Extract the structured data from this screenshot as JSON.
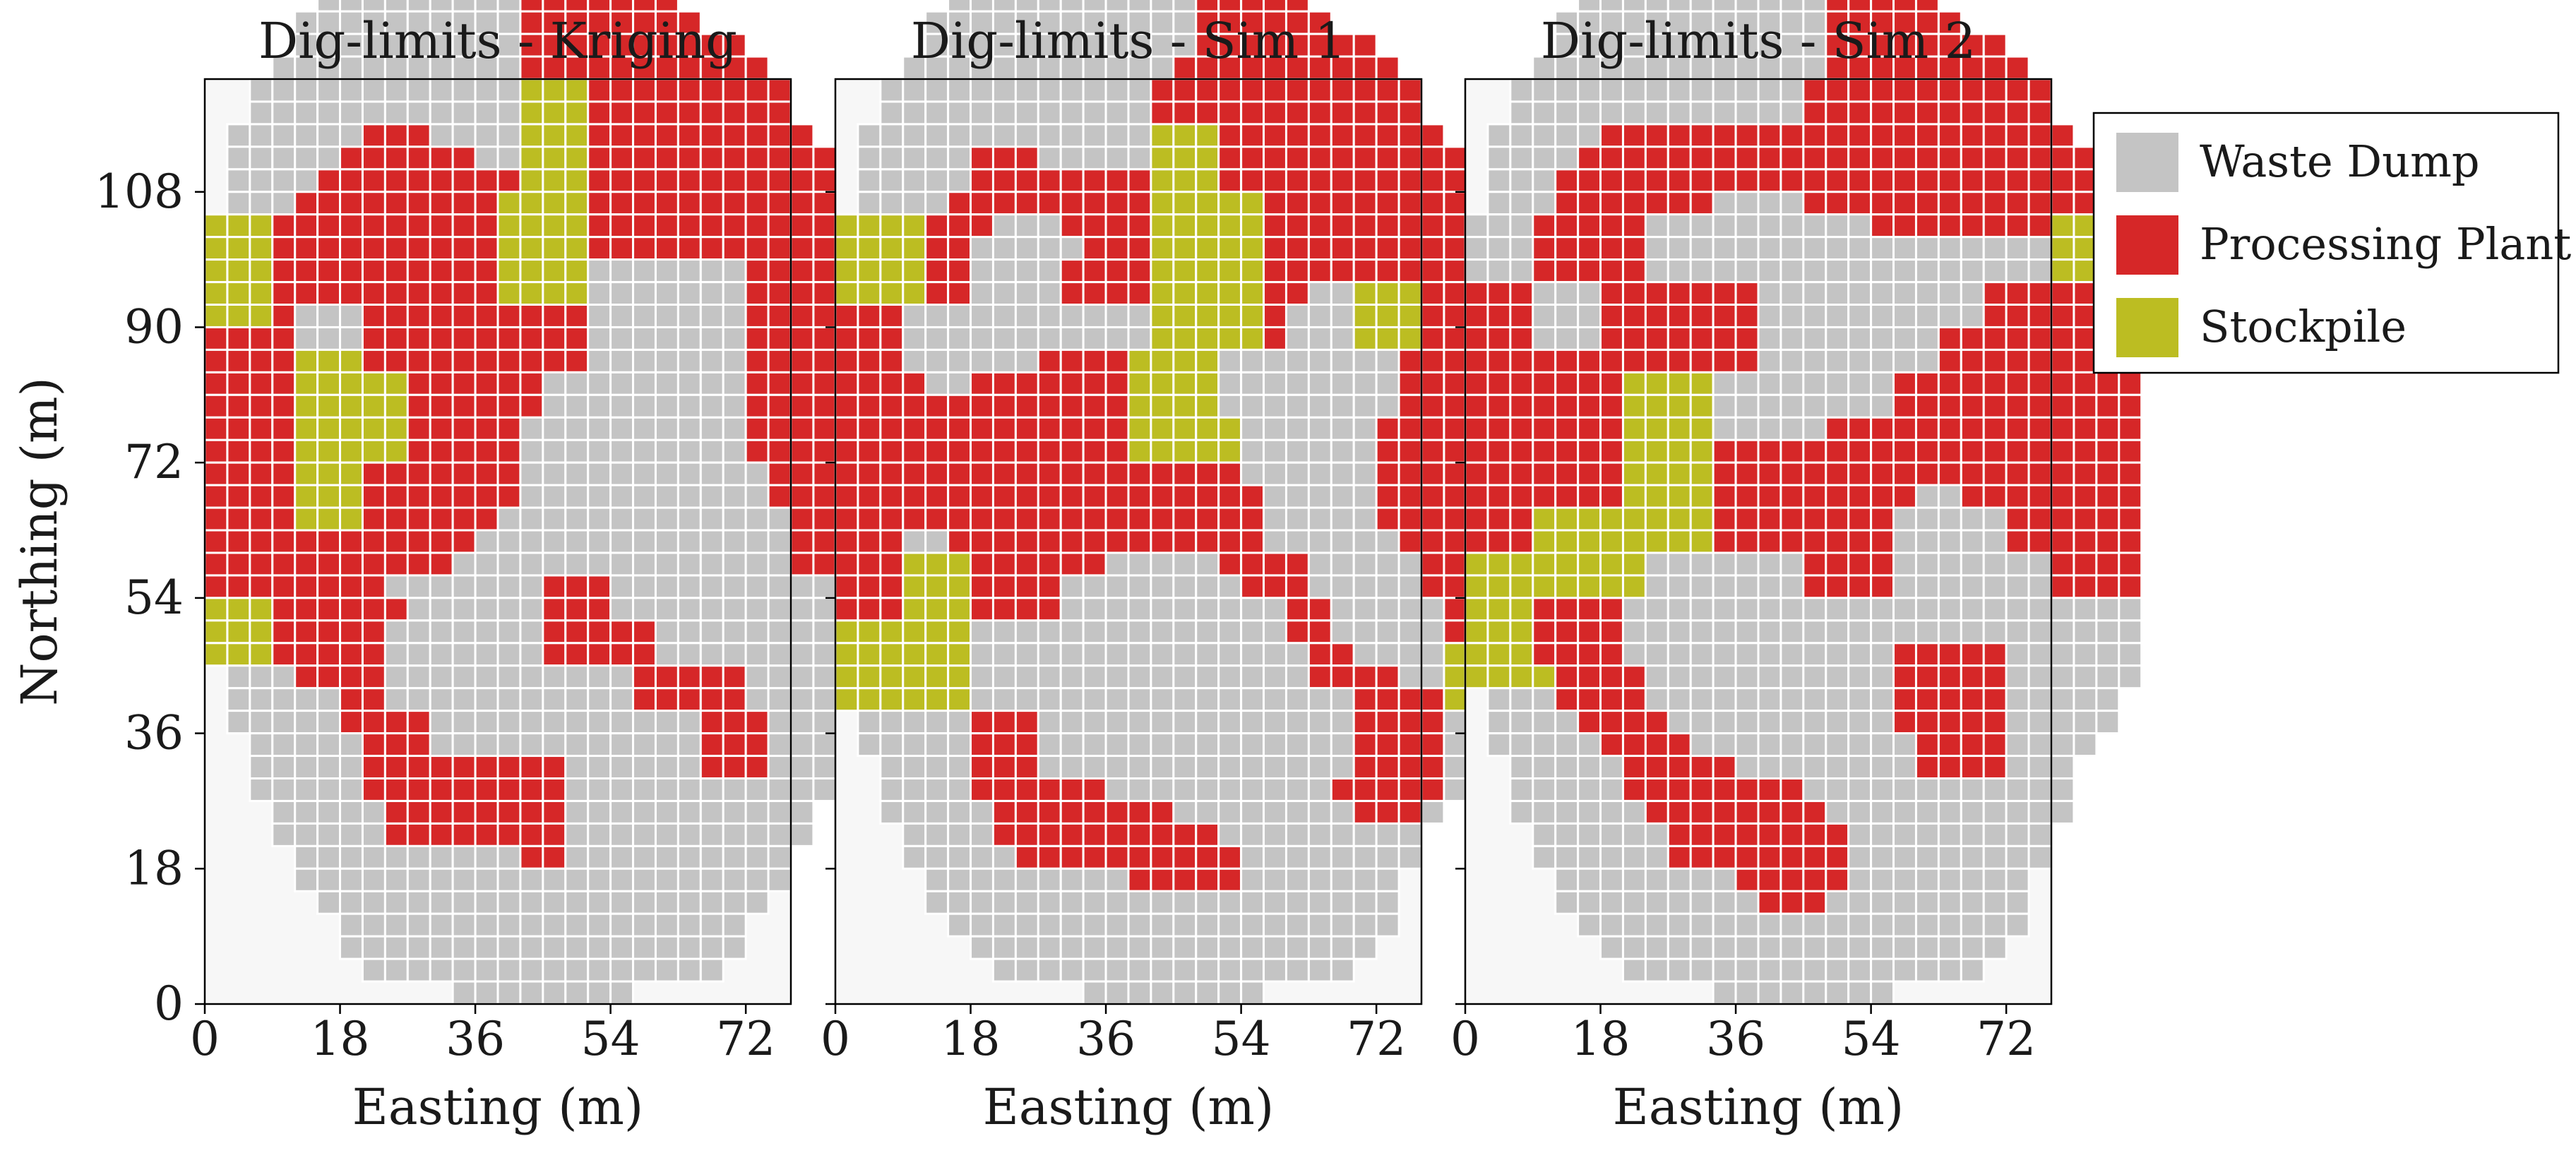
{
  "chart_data": {
    "type": "heatmap",
    "title": "",
    "cell_size": 3,
    "x_range": [
      0,
      78
    ],
    "y_range": [
      0,
      123
    ],
    "classes": [
      {
        "code": "W",
        "name": "Waste Dump",
        "color": "#c4c4c4"
      },
      {
        "code": "P",
        "name": "Processing Plant",
        "color": "#d62728"
      },
      {
        "code": "S",
        "name": "Stockpile",
        "color": "#bcbd22"
      }
    ],
    "background_color": "#f7f7f7",
    "legend": {
      "placement": "right",
      "entries": [
        "Waste Dump",
        "Processing Plant",
        "Stockpile"
      ]
    },
    "panels": [
      {
        "title": "Dig-limits - Kriging",
        "xlabel": "Easting (m)",
        "ylabel": "Northing (m)",
        "xticks": [
          0,
          18,
          36,
          54,
          72
        ],
        "yticks": [
          0,
          18,
          36,
          54,
          72,
          90,
          108
        ],
        "grid": [
          "...........WWWPPP.............",
          "........WWWWWWPPPPP...........",
          "......WWWWWWWWPPPPPP..........",
          ".....WWWWWWWWWPPPPPPP.........",
          "....WWWWWWWWWWPPPPPPPP........",
          "....WWWWWWWWWWPPPPPPPPPP......",
          "...WWWWWWWWWWWPPPPPPPPPPP.....",
          "..WWWWWWWWWWWWSSSPPPPPPPPP....",
          "..WWWWWWWWWWWWSSSPPPPPPPPP....",
          ".WWWWWWPPPWWWWSSSPPPPPPPPPP...",
          ".WWWWWPPPPPPWWSSSPPPPPPPPPPP..",
          ".WWWWPPPPPPPPPSSSPPPPPPPPPPP..",
          ".WWWPPPPPPPPPSSSSPPPPPPPPPPPP.",
          "SSSPPPPPPPPPPSSSSPPPPPPPPPPPPP",
          "SSSPPPPPPPPPPSSSSPPPPPPPPPPPPP",
          "SSSPPPPPPPPPPSSSSWWWWWWWPPPPPP",
          "SSSPPPPPPPPPPSSSSWWWWWWWPPPPPP",
          "SSSPWWWPPPPPPPPPPWWWWWWWPPPPPP",
          "PPPPWWWPPPPPPPPPPWWWWWWWPPPPPP",
          "PPPPSSSPPPPPPPPPPWWWWWWWPPPPPP",
          "PPPPSSSSSPPPPPPWWWWWWWWWPPPPPP",
          "PPPPSSSSSPPPPPPWWWWWWWWWPPPPPP",
          "PPPPSSSSSPPPPPWWWWWWWWWWPPPPPP",
          "PPPPSSSSSPPPPPWWWWWWWWWWPPPPPP",
          "PPPPSSSPPPPPPPWWWWWWWWWWWPPPPP",
          "PPPPSSSPPPPPPPWWWWWWWWWWWPPPPP",
          "PPPPSSSPPPPPPWWWWWWWWWWWWWPPPP",
          "PPPPPPPPPPPPWWWWWWWWWWWWWWPPPP",
          "PPPPPPPPPPPWWWWWWWWWWWWWWWPPPP",
          "PPPPPPPPWWWWWWWPPPWWWWWWWWWWWW",
          "SSSPPPPPPWWWWWWPPPWWWWWWWWWWWW",
          "SSSPPPPPWWWWWWWPPPPPWWWWWWWWWW",
          "SSSPPPPPWWWWWWWPPPPPWWWWWWWWWW",
          ".WWWPPPPWWWWWWWWWWWPPPPPWWWWW.",
          ".WWWWWPPWWWWWWWWWWWPPPPPWWWWW.",
          ".WWWWWPPPPWWWWWWWWWWWWPPPWWWW.",
          "..WWWWWPPPWWWWWWWWWWWWPPPWWW..",
          "..WWWWWPPPPPPPPPWWWWWWPPPWWW..",
          "..WWWWWPPPPPPPPPWWWWWWWWWWWW..",
          "...WWWWWPPPPPPPPWWWWWWWWWWW...",
          "...WWWWWPPPPPPPPWWWWWWWWWWW...",
          "....WWWWWWWWWWPPWWWWWWWWWW....",
          "....WWWWWWWWWWWWWWWWWWWWWW....",
          ".....WWWWWWWWWWWWWWWWWWWW.....",
          "......WWWWWWWWWWWWWWWWWW......",
          "......WWWWWWWWWWWWWWWWWW......",
          ".......WWWWWWWWWWWWWWWW.......",
          "...........WWWWWWWW..........."
        ]
      },
      {
        "title": "Dig-limits - Sim 1",
        "xlabel": "Easting (m)",
        "ylabel": "",
        "xticks": [
          0,
          18,
          36,
          54,
          72
        ],
        "yticks": [
          0,
          18,
          36,
          54,
          72,
          90,
          108
        ],
        "grid": [
          "...........WWWPPP.............",
          "........WWWWWWPPPPP...........",
          "......WWWWWWWWPPPPPP..........",
          ".....WWWWWWWWWWWPPPPP.........",
          "....WWWWWWWWWWWWPPPPPP........",
          "....WWWWWWWWWWWWPPPPPPPP......",
          "...WWWWWWWWWWWWPPPPPPPPPP.....",
          "..WWWWWWWWWWWWPPPPPPPPPPPP....",
          "..WWWWWWWWWWWWPPPPPPPPPPPP....",
          ".WWWWWWWWWWWWWSSSPPPPPPPPPP...",
          ".WWWWWPPPWWWWWSSSPPPPPPPPPPP..",
          ".WWWWWPPPPPPPPSSSPPPPPPPPPPP..",
          ".WWWWPPPPPPPPPSSSSSPPPPPPPPPP.",
          "SSSSPPPWWWPPPPSSSSSPPPPPPPPPPP",
          "SSSSPPWWWWWPPPSSSSSPPPPPPPPPPP",
          "SSSSPPWWWWPPPPSSSSSPPPPPPPPPPP",
          "SSSSPPWWWWPPPPSSSSSPPWWSSSPPPP",
          "PPPWWWWWWWWWWWSSSSSPWWWSSSPPPP",
          "PPPWWWWWWWWWWWSSSSSPWWWSSSPPPP",
          "PPPWWWWWWPPPPSSSSWWWWWWWWPPPPP",
          "PPPPWWPPPPPPPSSSSWWWWWWWWPPPPP",
          "PPPPPPPPPPPPPSSSSWWWWWWWWPPPPP",
          "PPPPPPPPPPPPPSSSSSWWWWWWPPPPPP",
          "PPPPPPPPPPPPPSSSSSWWWWWWPPPPPP",
          "PPPPPPPPPPPPPPPPPPWWWWWWPPPPPP",
          "PPPPPPPPPPPPPPPPPPPWWWWWPPPPPP",
          "PPPPPPPPPPPPPPPPPPPWWWWWPPPPPP",
          "PPPWWPPPPPPPPPPPPPPWWWWWWPPPPP",
          "PPPSSSPPPPPPWWWWWPPPPWWWWWPPPP",
          "PPPSSSPPPPWWWWWWWWPPPWWWWWPPPP",
          "PPPSSSPPPPWWWWWWWWWWPPWWWWWPPP",
          "SSSSSSWWWWWWWWWWWWWWPPWWWWWPPP",
          "SSSSSSWWWWWWWWWWWWWWWPPWWWWSSS",
          "SSSSSSWWWWWWWWWWWWWWWPPPPWWSSSS",
          "SSSSSSWWWWWWWWWWWWWWWWWPPPPSSSS",
          ".WWWWWPPPWWWWWWWWWWWWWWPPPPWWW.",
          ".WWWWWPPPWWWWWWWWWWWWWWPPPPWWW.",
          "..WWWWPPPWWWWWWWWWWWWWWPPPPWW..",
          "..WWWWPPPPPPWWWWWWWWWWPPPPPW...",
          "..WWWWWPPPPPPPPWWWWWWWWPPPW....",
          "...WWWWPPPPPPPPPPWWWWWWWWW.....",
          "...WWWWWPPPPPPPPPPWWWWWWWW.....",
          "....WWWWWWWWWPPPPPWWWWWWW......",
          "....WWWWWWWWWWWWWWWWWWWWW......",
          ".....WWWWWWWWWWWWWWWWWWWW......",
          "......WWWWWWWWWWWWWWWWWW......",
          ".......WWWWWWWWWWWWWWWW.......",
          "...........WWWWWWWW..........."
        ]
      },
      {
        "title": "Dig-limits - Sim 2",
        "xlabel": "Easting (m)",
        "ylabel": "",
        "xticks": [
          0,
          18,
          36,
          54,
          72
        ],
        "yticks": [
          0,
          18,
          36,
          54,
          72,
          90,
          108
        ],
        "grid": [
          "...........WWWPPP.............",
          "........WWWWWWPPPPP...........",
          "......WWWWWWWWPPPPPP..........",
          ".....WWWWWWWWWWWPPPPP.........",
          "....WWWWWWWWWWWWPPPPPP........",
          "....WWWWWWWWWWWWPPPPPPPP......",
          "...WWWWWWWWWWWWWPPPPPPPPP.....",
          "..WWWWWWWWWWWWWPPPPPPPPPPP....",
          "..WWWWWWWWWWWWWPPPPPPPPPPP....",
          ".WWWWWPPPPPPPPPPPPPPPPPPPPP...",
          ".WWWWPPPPPPPPPPPPPPPPPPPPPPP..",
          ".WWWPPPPPPPPPPPPPPPPPPPPPPPP..",
          ".WWWPPPPPPPWWWWPPPPPPPPPPPPPP.",
          "WWWPPPPPWWWWWWWWWWPPPPPPPPSSSS",
          "WWWPPPPPWWWWWWWWWWWWWWWWWWSSSS",
          "WWWPPPPPWWWWWWWWWWWWWWWWWWSSSS",
          "PPPWWWPPPPPPPWWWWWWWWWWPPPPPPP",
          "PPPWWWPPPPPPPWWWWWWWWWWPPPPPPP",
          "PPPWWWPPPPPPPWWWWWWWWPPPPPPPPP",
          "PPPPPPPPPPPPPWWWWWWWWPPPPPPPPP",
          "PPPPPPPSSSSWWWWWWWWPPPPPPPPPPP",
          "PPPPPPPSSSSWWWWWWWWPPPPPPPPPPP",
          "PPPPPPPSSSSWWWWWPPPPPPPPPPPPPP",
          "PPPPPPPSSSSPPPPPPPPPPPPPPPPPPP",
          "PPPPPPPSSSSPPPPPPPPPPPPPPPPPPP",
          "PPPPPPPSSSSPPPPPPPPPWWPPPPPPPP",
          "PPPSSSSSSSSPPPPPPPPWWWWWPPPPPP",
          "PPPSSSSSSSSPPPPPPPPWWWWWPPPPPP",
          "SSSSSSSSWWWWWWWPPPPWWWWWWWPPPP",
          "SSSSSSSSWWWWWWWPPPPWWWWWWWPPPP",
          "SSSPPPPWWWWWWWWWWWWWWWWWWWWWWW",
          "SSSPPPPWWWWWWWWWWWWWWWWWWWWWWW",
          "SSSPPPPWWWWWWWWWWWWPPPPPWWWWWW",
          "SSSSPPPPWWWWWWWWWWWPPPPPWWWWWW",
          ".WWWPPPPWWWWWWWWWWWPPPPPWWWWW.",
          ".WWWWPPPPWWWWWWWWWWPPPPPWWWWW.",
          ".WWWWWPPPPWWWWWWWWWWPPPPWWWW..",
          "..WWWWWPPPPPWWWWWWWWPPPPWWW...",
          "..WWWWWPPPPPPPPWWWWWWWWWWWW...",
          "..WWWWWWPPPPPPPPWWWWWWWWWWW...",
          "...WWWWWWPPPPPPPPWWWWWWWWW....",
          "...WWWWWWPPPPPPPPWWWWWWWWW....",
          "....WWWWWWWWPPPPPWWWWWWWW.....",
          "....WWWWWWWWWPPPWWWWWWWWW.....",
          ".....WWWWWWWWWWWWWWWWWWWW.....",
          "......WWWWWWWWWWWWWWWWWW......",
          ".......WWWWWWWWWWWWWWWW.......",
          "...........WWWWWWWW..........."
        ]
      }
    ]
  }
}
